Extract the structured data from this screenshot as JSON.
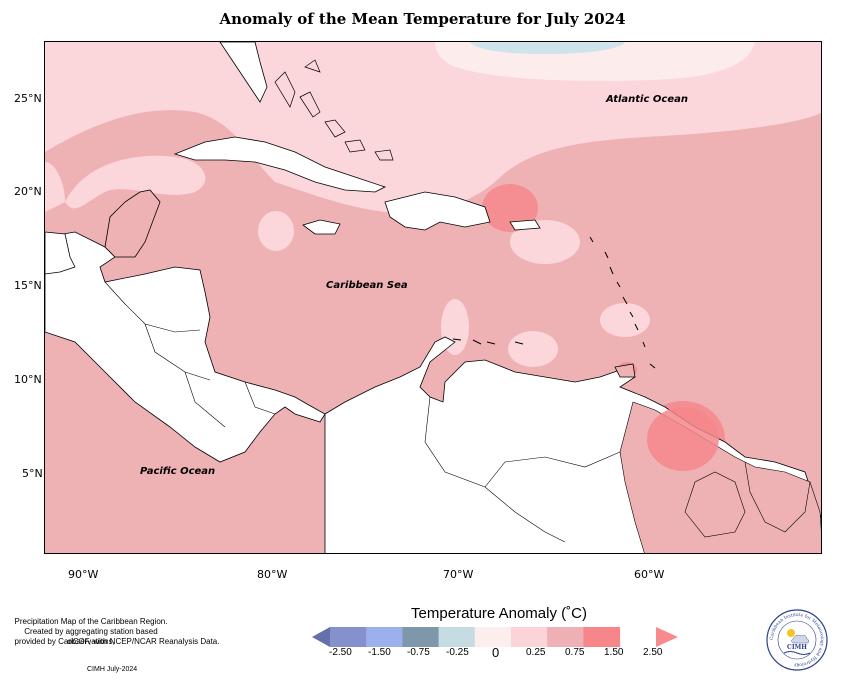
{
  "title": "Anomaly of the Mean Temperature for July 2024",
  "map": {
    "lat_ticks": [
      "25°N",
      "20°N",
      "15°N",
      "10°N",
      "5°N"
    ],
    "lon_ticks": [
      "90°W",
      "80°W",
      "70°W",
      "60°W"
    ],
    "ocean_labels": {
      "atlantic": "Atlantic Ocean",
      "caribbean": "Caribbean Sea",
      "pacific": "Pacific Ocean"
    },
    "colors": {
      "land": "#ffffff",
      "anomaly_0_to_025": "#fdecec",
      "anomaly_025_to_075": "#fbd6db",
      "anomaly_075_to_150": "#efb2b4",
      "anomaly_150_to_250": "#f5878c",
      "anomaly_neg025_to_0": "#cfe3ea"
    }
  },
  "legend": {
    "title": "Temperature Anomaly (˚C)",
    "labels": [
      "-2.50",
      "-1.50",
      "-0.75",
      "-0.25",
      "0",
      "0.25",
      "0.75",
      "1.50",
      "2.50"
    ],
    "colors": [
      "#6470aa",
      "#8591cc",
      "#9db0ee",
      "#7f97aa",
      "#c5dce3",
      "#fdeeee",
      "#fad4d8",
      "#eeb0b4",
      "#f7868a",
      "#f88a8d"
    ]
  },
  "notes": {
    "line1": "Precipitation Map of the Caribbean Region.",
    "line2": "Created by aggregating station based observations,",
    "line3": "provided by CariCOF, with NCEP/NCAR Reanalysis Data.",
    "credit": "CIMH July-2024"
  },
  "logo": {
    "name": "CIMH",
    "ring_text": "Caribbean Institute for Meteorology and Hydrology"
  }
}
